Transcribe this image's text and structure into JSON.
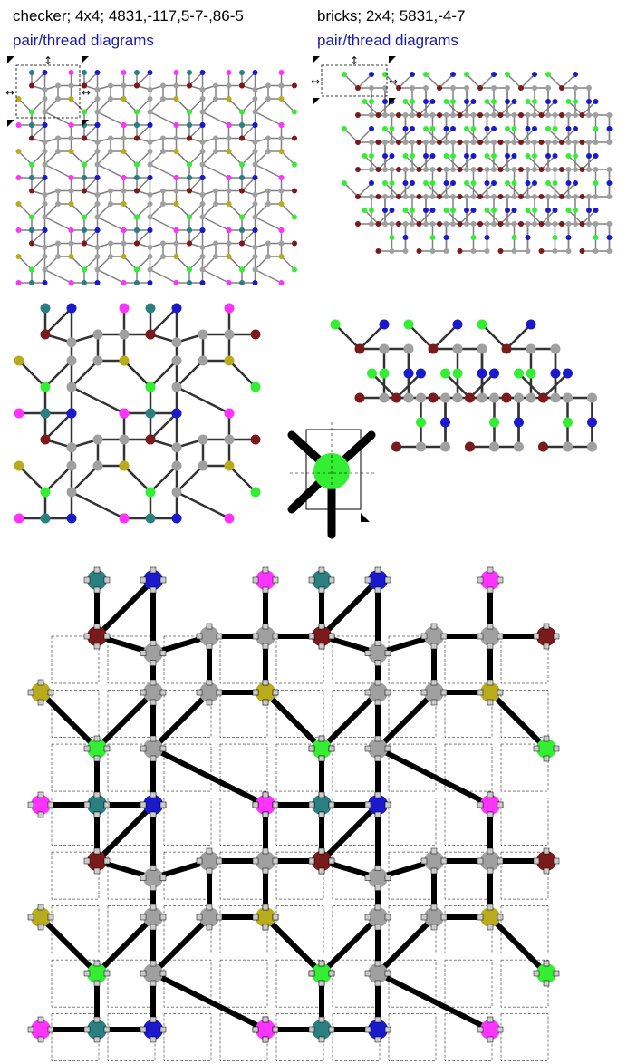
{
  "left_panel": {
    "caption": "checker; 4x4; 4831,-117,5-7-,86-5",
    "link": "pair/thread diagrams"
  },
  "right_panel": {
    "caption": "bricks; 2x4; 5831,-4-7",
    "link": "pair/thread diagrams"
  },
  "colors": {
    "magenta": "#ff33ff",
    "blue": "#1a1acc",
    "teal": "#2a7f80",
    "olive": "#b8ab1c",
    "maroon": "#7a1a1a",
    "green": "#33ee33",
    "gray": "#a0a0a0",
    "line": "#000000",
    "thin_line": "#808080"
  }
}
